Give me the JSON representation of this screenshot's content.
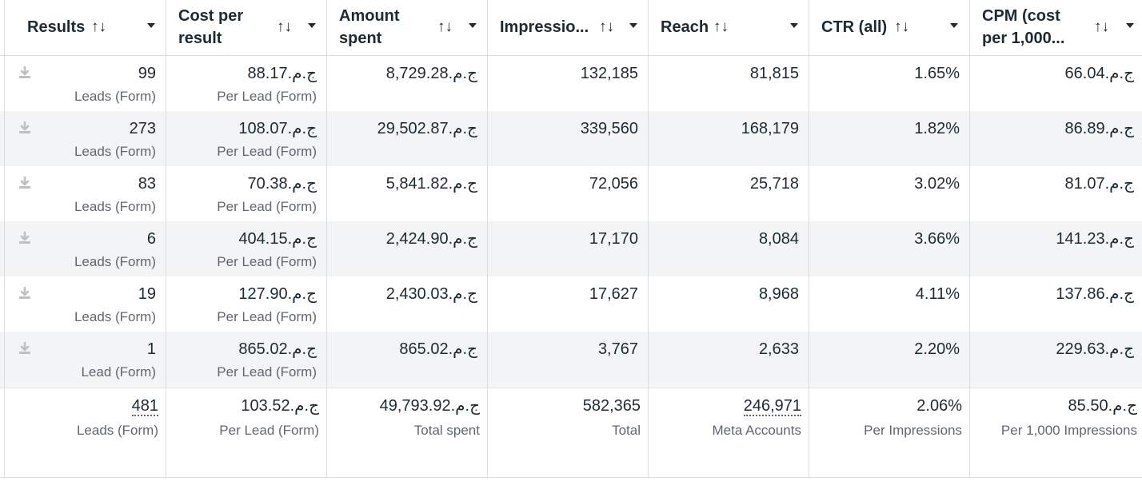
{
  "columns": [
    {
      "id": "results",
      "label": "Results"
    },
    {
      "id": "cost",
      "label_line1": "Cost per",
      "label_line2": "result"
    },
    {
      "id": "amount",
      "label_line1": "Amount",
      "label_line2": "spent"
    },
    {
      "id": "impressions",
      "label": "Impressio..."
    },
    {
      "id": "reach",
      "label": "Reach"
    },
    {
      "id": "ctr",
      "label": "CTR (all)"
    },
    {
      "id": "cpm",
      "label_line1": "CPM (cost",
      "label_line2": "per 1,000..."
    }
  ],
  "sort_glyph": "↑↓",
  "rows": [
    {
      "results": "99",
      "results_sub": "Leads (Form)",
      "cost": "ج.م.88.17",
      "cost_sub": "Per Lead (Form)",
      "amount": "ج.م.8,729.28",
      "impressions": "132,185",
      "reach": "81,815",
      "ctr": "1.65%",
      "cpm": "ج.م.66.04"
    },
    {
      "results": "273",
      "results_sub": "Leads (Form)",
      "cost": "ج.م.108.07",
      "cost_sub": "Per Lead (Form)",
      "amount": "ج.م.29,502.87",
      "impressions": "339,560",
      "reach": "168,179",
      "ctr": "1.82%",
      "cpm": "ج.م.86.89"
    },
    {
      "results": "83",
      "results_sub": "Leads (Form)",
      "cost": "ج.م.70.38",
      "cost_sub": "Per Lead (Form)",
      "amount": "ج.م.5,841.82",
      "impressions": "72,056",
      "reach": "25,718",
      "ctr": "3.02%",
      "cpm": "ج.م.81.07"
    },
    {
      "results": "6",
      "results_sub": "Leads (Form)",
      "cost": "ج.م.404.15",
      "cost_sub": "Per Lead (Form)",
      "amount": "ج.م.2,424.90",
      "impressions": "17,170",
      "reach": "8,084",
      "ctr": "3.66%",
      "cpm": "ج.م.141.23"
    },
    {
      "results": "19",
      "results_sub": "Leads (Form)",
      "cost": "ج.م.127.90",
      "cost_sub": "Per Lead (Form)",
      "amount": "ج.م.2,430.03",
      "impressions": "17,627",
      "reach": "8,968",
      "ctr": "4.11%",
      "cpm": "ج.م.137.86"
    },
    {
      "results": "1",
      "results_sub": "Lead (Form)",
      "cost": "ج.م.865.02",
      "cost_sub": "Per Lead (Form)",
      "amount": "ج.م.865.02",
      "impressions": "3,767",
      "reach": "2,633",
      "ctr": "2.20%",
      "cpm": "ج.م.229.63"
    }
  ],
  "totals": {
    "results": "481",
    "results_sub": "Leads (Form)",
    "cost": "ج.م.103.52",
    "cost_sub": "Per Lead (Form)",
    "amount": "ج.م.49,793.92",
    "amount_sub": "Total spent",
    "impressions": "582,365",
    "impressions_sub": "Total",
    "reach": "246,971",
    "reach_sub": "Meta Accounts",
    "ctr": "2.06%",
    "ctr_sub": "Per Impressions",
    "cpm": "ج.م.85.50",
    "cpm_sub": "Per 1,000 Impressions"
  },
  "icons": {
    "row_action": "download-icon",
    "sort": "sort-arrows-icon",
    "menu": "caret-down-icon"
  },
  "colors": {
    "border": "#dadde1",
    "alt_row": "#f2f4f6",
    "text": "#1c2b33",
    "subtext": "#606770"
  }
}
